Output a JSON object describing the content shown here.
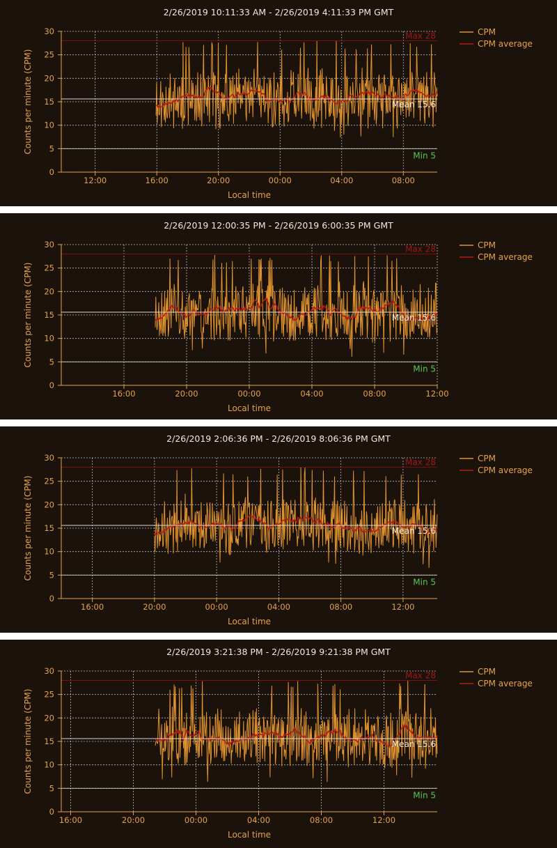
{
  "colors": {
    "background": "#1b120b",
    "separator": "#ffffff",
    "cpm": "#e0932e",
    "average": "#b81a12",
    "axis": "#e6a24a",
    "grid": "#d9d9d9",
    "max_line": "#7a1010",
    "min_line": "#cfd8cf",
    "mean_line": "#d8d8d8"
  },
  "legend": {
    "cpm_label": "CPM",
    "avg_label": "CPM average"
  },
  "chart_data": [
    {
      "type": "line",
      "title": "2/26/2019 10:11:33 AM - 2/26/2019 4:11:33 PM GMT",
      "xlabel": "Local time",
      "ylabel": "Counts per minute (CPM)",
      "ylim": [
        0,
        30
      ],
      "yticks": [
        0,
        5,
        10,
        15,
        20,
        25,
        30
      ],
      "xlim": [
        9.8,
        34.2
      ],
      "xticks": [
        12,
        16,
        20,
        24,
        28,
        32
      ],
      "xtick_labels": [
        "12:00",
        "16:00",
        "20:00",
        "00:00",
        "04:00",
        "08:00"
      ],
      "data_start": 15.95,
      "series": [
        {
          "name": "CPM",
          "mean": 15.6,
          "amplitude": 5.5,
          "seed": 11
        },
        {
          "name": "CPM average",
          "mean": 15.6,
          "amplitude": 1.2,
          "seed": 11
        }
      ],
      "max": 28,
      "min": 5,
      "mean_value": 15.6,
      "max_label": "Max 28",
      "min_label": "Min 5",
      "mean_label": "Mean 15.6"
    },
    {
      "type": "line",
      "title": "2/26/2019 12:00:35 PM - 2/26/2019 6:00:35 PM GMT",
      "xlabel": "Local time",
      "ylabel": "Counts per minute (CPM)",
      "ylim": [
        0,
        30
      ],
      "yticks": [
        0,
        5,
        10,
        15,
        20,
        25,
        30
      ],
      "xlim": [
        12,
        36
      ],
      "xticks": [
        16,
        20,
        24,
        28,
        32,
        36
      ],
      "xtick_labels": [
        "16:00",
        "20:00",
        "00:00",
        "04:00",
        "08:00",
        "12:00"
      ],
      "data_start": 18.0,
      "series": [
        {
          "name": "CPM",
          "mean": 15.6,
          "amplitude": 5.5,
          "seed": 23
        },
        {
          "name": "CPM average",
          "mean": 15.6,
          "amplitude": 1.2,
          "seed": 23
        }
      ],
      "max": 28,
      "min": 5,
      "mean_value": 15.6,
      "max_label": "Max 28",
      "min_label": "Min 5",
      "mean_label": "Mean 15.6"
    },
    {
      "type": "line",
      "title": "2/26/2019 2:06:36 PM - 2/26/2019 8:06:36 PM GMT",
      "xlabel": "Local time",
      "ylabel": "Counts per minute (CPM)",
      "ylim": [
        0,
        30
      ],
      "yticks": [
        0,
        5,
        10,
        15,
        20,
        25,
        30
      ],
      "xlim": [
        14,
        38.2
      ],
      "xticks": [
        16,
        20,
        24,
        28,
        32,
        36
      ],
      "xtick_labels": [
        "16:00",
        "20:00",
        "00:00",
        "04:00",
        "08:00",
        "12:00"
      ],
      "data_start": 20.0,
      "series": [
        {
          "name": "CPM",
          "mean": 15.6,
          "amplitude": 5.5,
          "seed": 37
        },
        {
          "name": "CPM average",
          "mean": 15.6,
          "amplitude": 1.2,
          "seed": 37
        }
      ],
      "max": 28,
      "min": 5,
      "mean_value": 15.6,
      "max_label": "Max 28",
      "min_label": "Min 5",
      "mean_label": "Mean 15.6"
    },
    {
      "type": "line",
      "title": "2/26/2019 3:21:38 PM - 2/26/2019 9:21:38 PM GMT",
      "xlabel": "Local time",
      "ylabel": "Counts per minute (CPM)",
      "ylim": [
        0,
        30
      ],
      "yticks": [
        0,
        5,
        10,
        15,
        20,
        25,
        30
      ],
      "xlim": [
        15.4,
        39.4
      ],
      "xticks": [
        16,
        20,
        24,
        28,
        32,
        36
      ],
      "xtick_labels": [
        "16:00",
        "20:00",
        "00:00",
        "04:00",
        "08:00",
        "12:00"
      ],
      "data_start": 21.4,
      "series": [
        {
          "name": "CPM",
          "mean": 15.6,
          "amplitude": 5.5,
          "seed": 51
        },
        {
          "name": "CPM average",
          "mean": 15.6,
          "amplitude": 1.2,
          "seed": 51
        }
      ],
      "max": 28,
      "min": 5,
      "mean_value": 15.6,
      "max_label": "Max 28",
      "min_label": "Min 5",
      "mean_label": "Mean 15.6"
    }
  ]
}
